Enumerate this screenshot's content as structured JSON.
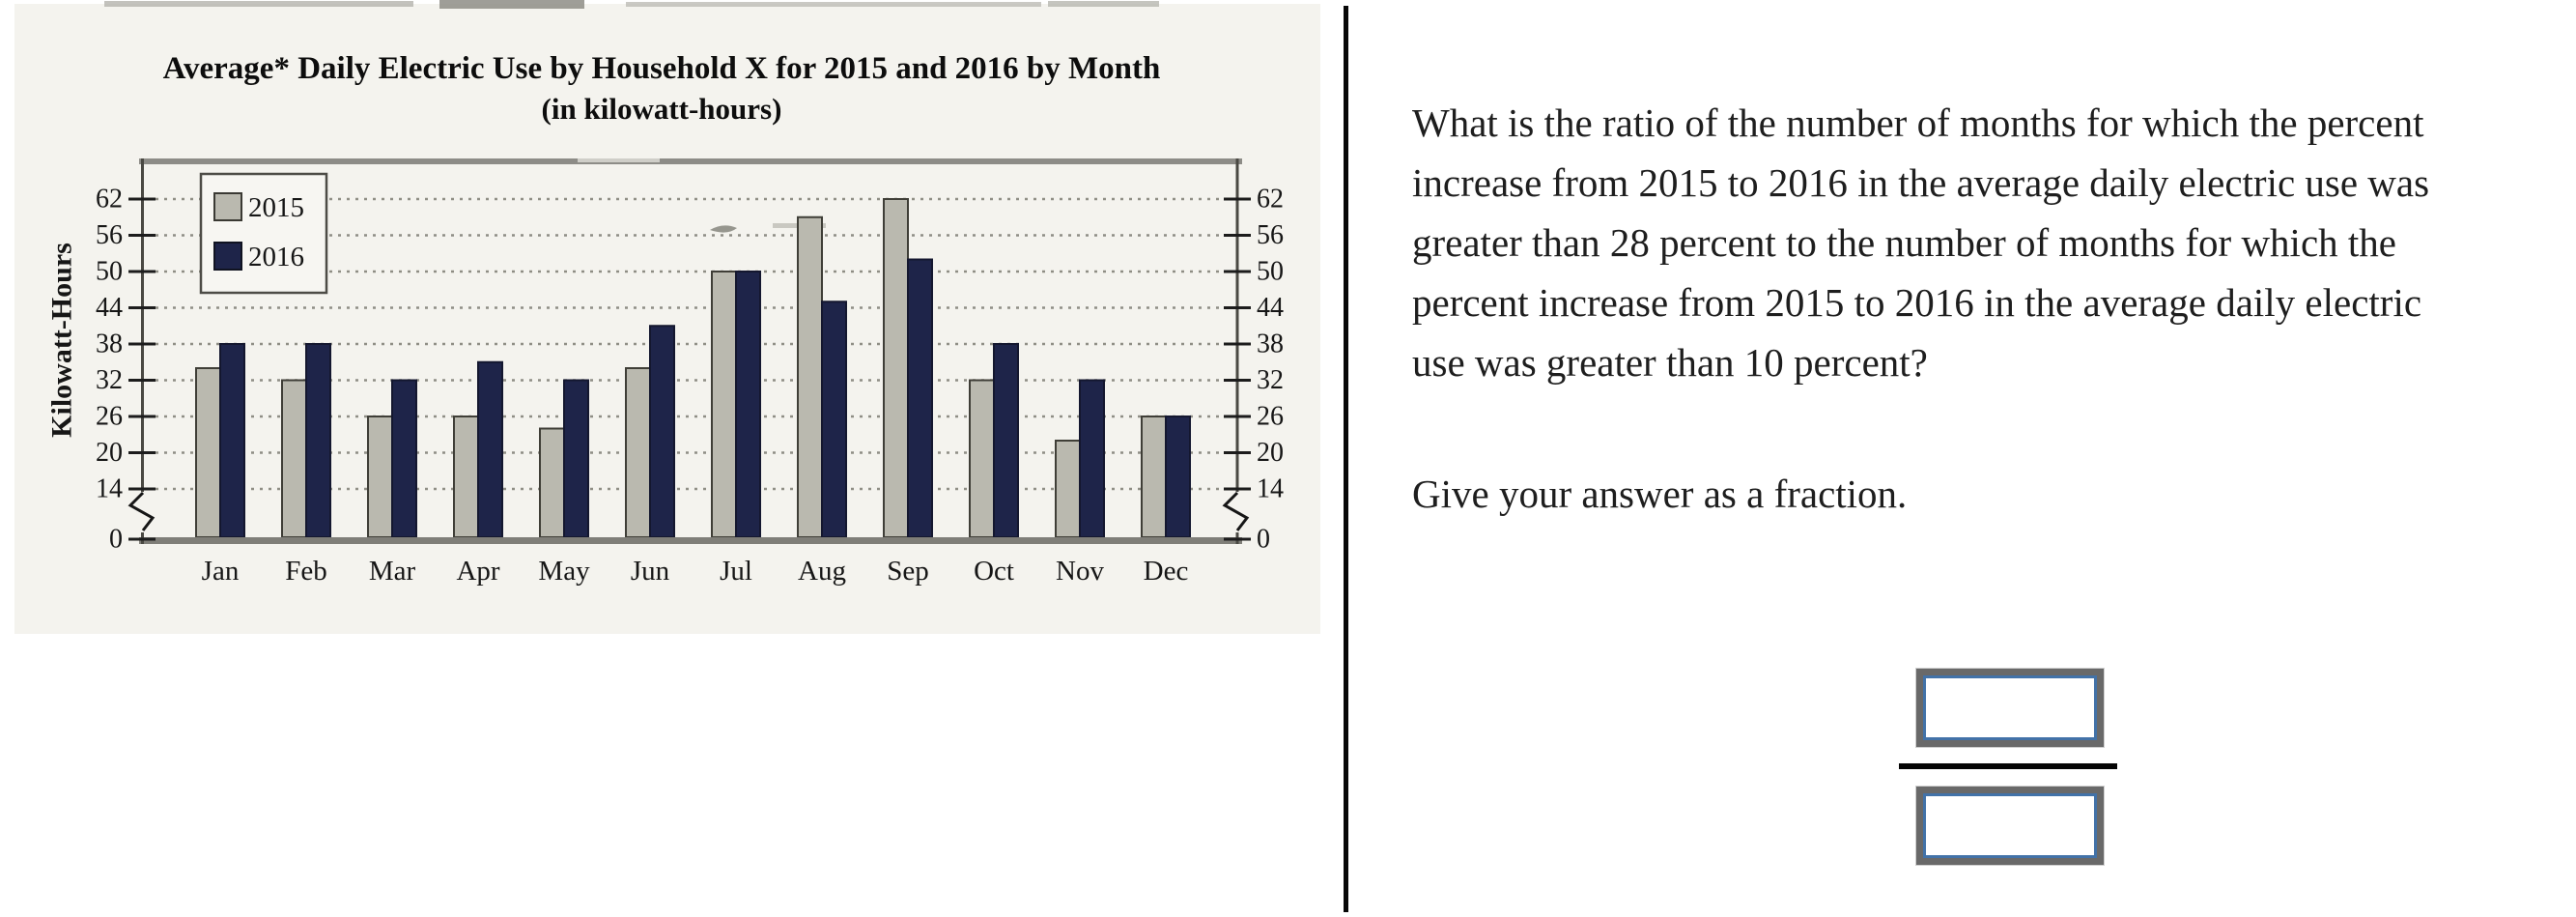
{
  "chart_data": {
    "type": "bar",
    "title": "Average* Daily Electric Use by Household X for 2015 and 2016 by Month",
    "subtitle": "(in kilowatt-hours)",
    "ylabel": "Kilowatt-Hours",
    "categories": [
      "Jan",
      "Feb",
      "Mar",
      "Apr",
      "May",
      "Jun",
      "Jul",
      "Aug",
      "Sep",
      "Oct",
      "Nov",
      "Dec"
    ],
    "series": [
      {
        "name": "2015",
        "color": "#bab9af",
        "values": [
          34,
          32,
          26,
          26,
          24,
          34,
          50,
          59,
          62,
          32,
          22,
          26
        ]
      },
      {
        "name": "2016",
        "color": "#1e2449",
        "values": [
          38,
          38,
          32,
          35,
          32,
          41,
          50,
          45,
          52,
          38,
          32,
          26
        ]
      }
    ],
    "y_ticks": [
      0,
      14,
      20,
      26,
      32,
      38,
      44,
      50,
      56,
      62
    ],
    "ylim": [
      0,
      66
    ],
    "axis_break_between": [
      0,
      14
    ],
    "grid": "dotted-horizontal",
    "legend_position": "top-left"
  },
  "question": {
    "lines": [
      "What is the ratio of the number of months for which the percent",
      "increase from 2015 to 2016 in the average daily electric use was",
      "greater than 28 percent to the number of months for which the",
      "percent increase from 2015 to 2016 in the average daily electric",
      "use was greater than 10 percent?"
    ],
    "instruction": "Give your answer as a fraction.",
    "numerator_value": "",
    "denominator_value": ""
  }
}
